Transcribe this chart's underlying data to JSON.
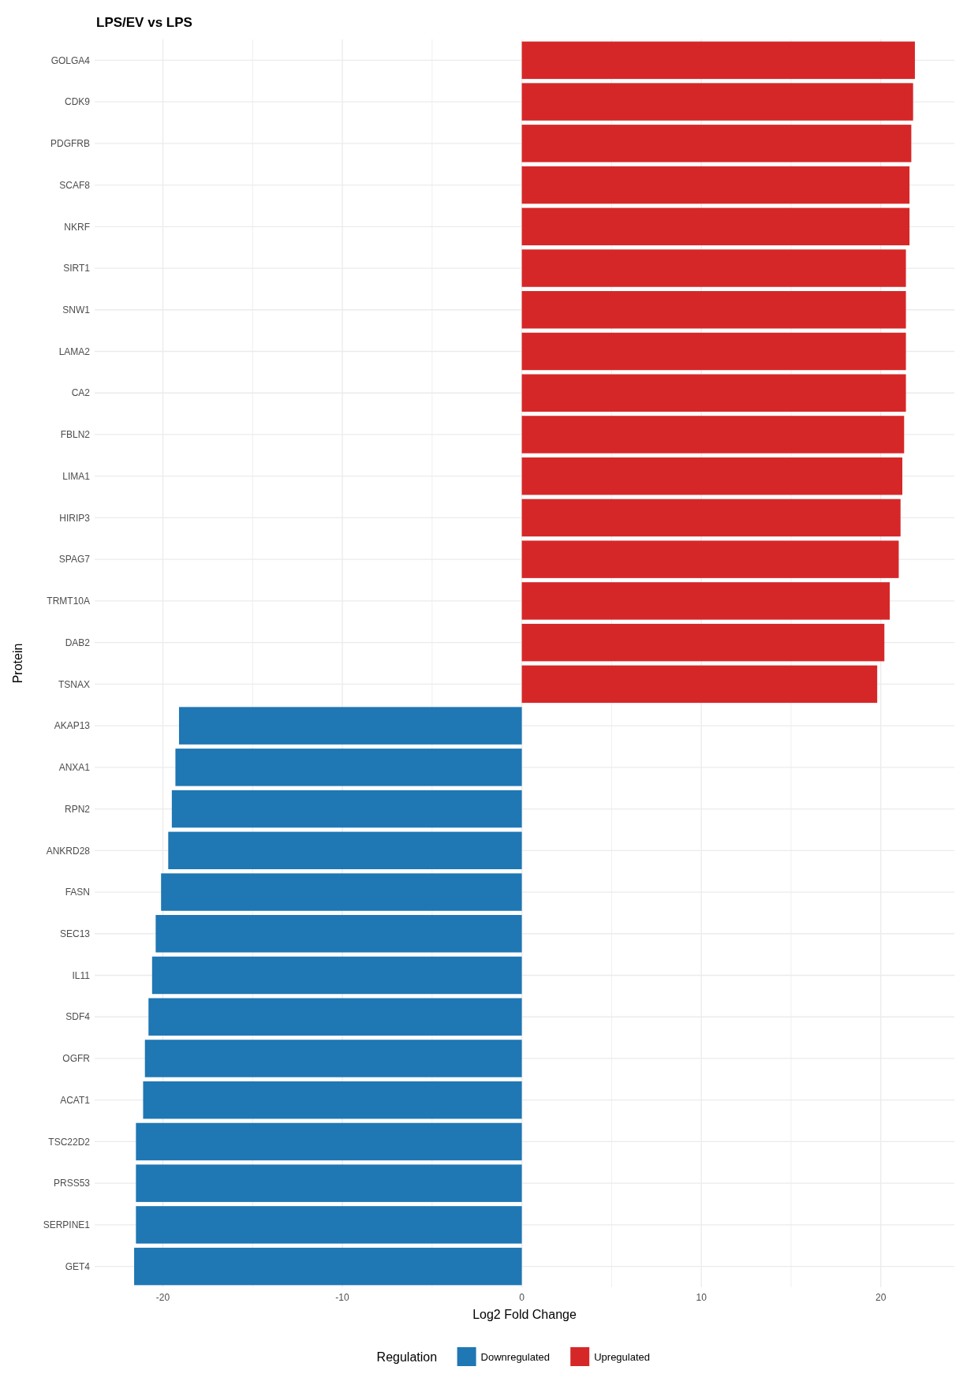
{
  "chart_data": {
    "type": "bar",
    "orientation": "horizontal",
    "title": "LPS/EV vs LPS",
    "xlabel": "Log2 Fold Change",
    "ylabel": "Protein",
    "legend_title": "Regulation",
    "legend": "bottom",
    "grid": true,
    "categories": [
      "GOLGA4",
      "CDK9",
      "PDGFRB",
      "SCAF8",
      "NKRF",
      "SIRT1",
      "SNW1",
      "LAMA2",
      "CA2",
      "FBLN2",
      "LIMA1",
      "HIRIP3",
      "SPAG7",
      "TRMT10A",
      "DAB2",
      "TSNAX",
      "AKAP13",
      "ANXA1",
      "RPN2",
      "ANKRD28",
      "FASN",
      "SEC13",
      "IL11",
      "SDF4",
      "OGFR",
      "ACAT1",
      "TSC22D2",
      "PRSS53",
      "SERPINE1",
      "GET4"
    ],
    "xlim": [
      -23.8,
      24.1
    ],
    "xticks": [
      -20,
      {
        "value": -15,
        "label": null
      },
      -10,
      {
        "value": -5,
        "label": null
      },
      0,
      {
        "value": 5,
        "label": null
      },
      10,
      {
        "value": 15,
        "label": null
      },
      20
    ],
    "series": [
      {
        "name": "Downregulated",
        "color": "#1f77b4",
        "values": [
          null,
          null,
          null,
          null,
          null,
          null,
          null,
          null,
          null,
          null,
          null,
          null,
          null,
          null,
          null,
          null,
          -19.1,
          -19.3,
          -19.5,
          -19.7,
          -20.1,
          -20.4,
          -20.6,
          -20.8,
          -21.0,
          -21.1,
          -21.5,
          -21.5,
          -21.5,
          -21.6
        ]
      },
      {
        "name": "Upregulated",
        "color": "#d62728",
        "values": [
          21.9,
          21.8,
          21.7,
          21.6,
          21.6,
          21.4,
          21.4,
          21.4,
          21.4,
          21.3,
          21.2,
          21.1,
          21.0,
          20.5,
          20.2,
          19.8,
          null,
          null,
          null,
          null,
          null,
          null,
          null,
          null,
          null,
          null,
          null,
          null,
          null,
          null
        ]
      }
    ]
  }
}
